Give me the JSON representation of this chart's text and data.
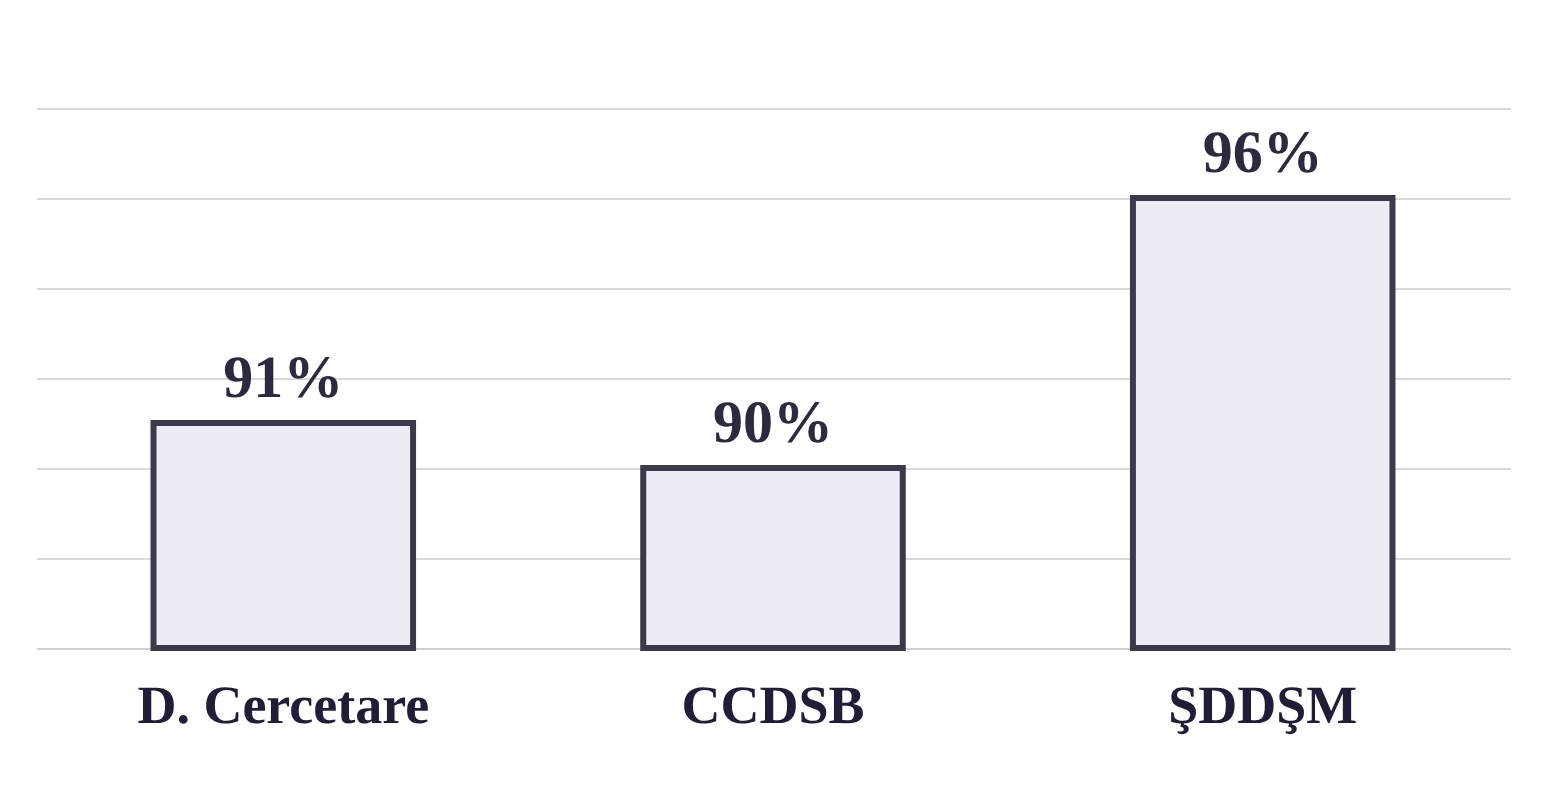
{
  "chart_data": {
    "type": "bar",
    "categories": [
      "D. Cercetare",
      "CCDSB",
      "ŞDDŞM"
    ],
    "values": [
      91,
      90,
      96
    ],
    "value_labels": [
      "91%",
      "90%",
      "96%"
    ],
    "color": "#ececf4",
    "ylim": [
      86,
      98
    ],
    "yticks": [
      {
        "value": 86,
        "label": null
      },
      {
        "value": 88,
        "label": null
      },
      {
        "value": 90,
        "label": null
      },
      {
        "value": 92,
        "label": null
      },
      {
        "value": 94,
        "label": null
      },
      {
        "value": 96,
        "label": null
      },
      {
        "value": 98,
        "label": null
      }
    ],
    "grid": "y",
    "tick_labels": "x"
  }
}
